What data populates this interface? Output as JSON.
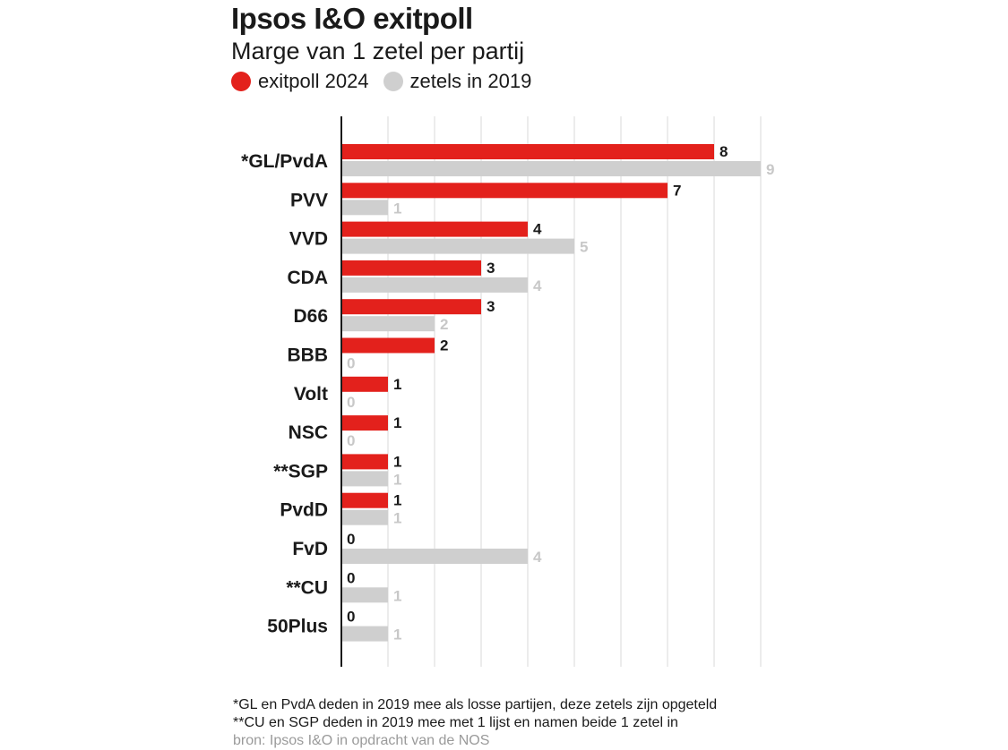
{
  "header": {
    "title": "Ipsos I&O exitpoll",
    "subtitle": "Marge van 1 zetel per partij"
  },
  "legend": [
    {
      "label": "exitpoll 2024",
      "color": "#e3211c"
    },
    {
      "label": "zetels in 2019",
      "color": "#cfcfcf"
    }
  ],
  "footnotes": {
    "note1": "*GL en PvdA deden in 2019 mee als losse partijen, deze zetels zijn opgeteld",
    "note2": "**CU en SGP deden in 2019 mee met 1 lijst en namen beide 1 zetel in",
    "source": "bron: Ipsos I&O in opdracht van de NOS"
  },
  "chart_data": {
    "type": "bar",
    "orientation": "horizontal",
    "categories": [
      "*GL/PvdA",
      "PVV",
      "VVD",
      "CDA",
      "D66",
      "BBB",
      "Volt",
      "NSC",
      "**SGP",
      "PvdD",
      "FvD",
      "**CU",
      "50Plus"
    ],
    "series": [
      {
        "name": "exitpoll 2024",
        "color": "#e3211c",
        "values": [
          8,
          7,
          4,
          3,
          3,
          2,
          1,
          1,
          1,
          1,
          0,
          0,
          0
        ]
      },
      {
        "name": "zetels in 2019",
        "color": "#cfcfcf",
        "values": [
          9,
          1,
          5,
          4,
          2,
          0,
          0,
          0,
          1,
          1,
          4,
          1,
          1
        ]
      }
    ],
    "xlim": [
      0,
      9
    ],
    "grid": true,
    "legend_position": "top-left"
  }
}
